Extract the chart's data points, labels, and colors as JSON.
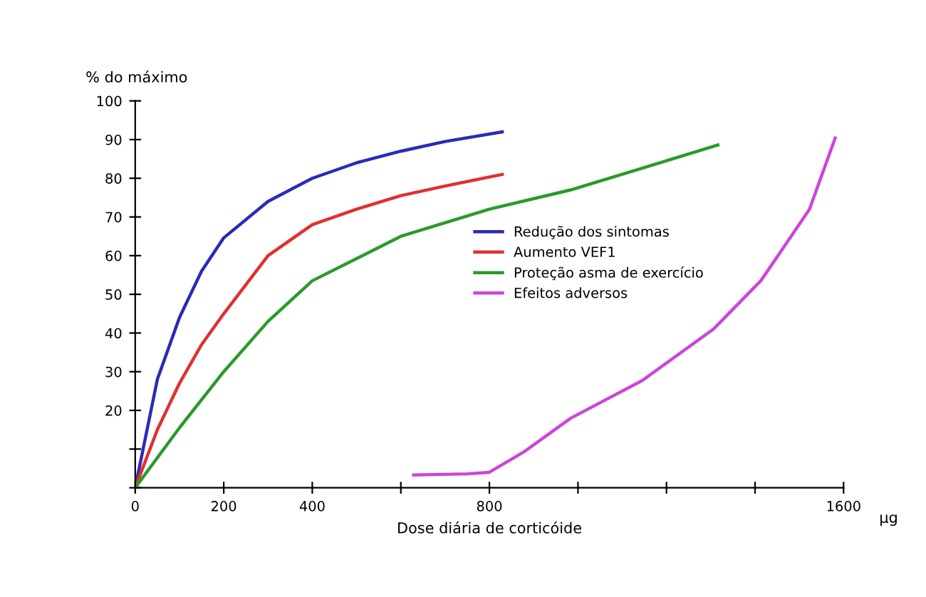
{
  "chart_data": {
    "type": "line",
    "ylabel": "% do máximo",
    "xlabel": "Dose diária de corticóide",
    "annotations": [
      "µg"
    ],
    "xlim": [
      0,
      1600
    ],
    "xticks": [
      0,
      200,
      400,
      {
        "value": 600,
        "label": null
      },
      800,
      {
        "value": 1000,
        "label": null
      },
      {
        "value": 1200,
        "label": null
      },
      {
        "value": 1400,
        "label": null
      },
      1600
    ],
    "ylim": [
      0,
      100
    ],
    "yticks": [
      {
        "value": 0,
        "label": null
      },
      {
        "value": 10,
        "label": null
      },
      20,
      30,
      40,
      50,
      60,
      70,
      80,
      90,
      100
    ],
    "grid": false,
    "legend": "right",
    "marker": "none",
    "line_style": "solid",
    "series": [
      {
        "name": "Redução dos sintomas",
        "color": "#2a2ab8",
        "x": [
          0,
          50,
          100,
          150,
          200,
          300,
          400,
          500,
          600,
          700,
          829
        ],
        "values": [
          0,
          28,
          44,
          56,
          64.6,
          74,
          80,
          84,
          87,
          89.5,
          92
        ]
      },
      {
        "name": "Aumento VEF1",
        "color": "#e03030",
        "x": [
          0,
          50,
          100,
          150,
          200,
          300,
          400,
          500,
          600,
          700,
          829
        ],
        "values": [
          0,
          15,
          27,
          37,
          45,
          60,
          68,
          72,
          75.5,
          78,
          81
        ]
      },
      {
        "name": "Proteção asma de exercício",
        "color": "#2a9a2a",
        "x": [
          0,
          100,
          200,
          300,
          400,
          600,
          800,
          984,
          1145,
          1316
        ],
        "values": [
          0,
          15.5,
          30,
          43,
          53.5,
          65,
          72,
          77,
          82.6,
          88.6
        ]
      },
      {
        "name": "Efeitos adversos",
        "color": "#cc44dd",
        "x": [
          629,
          750,
          800,
          877,
          984,
          1145,
          1306,
          1413,
          1523,
          1581
        ],
        "values": [
          3.3,
          3.6,
          4,
          9.2,
          18,
          27.7,
          41,
          53.5,
          72,
          90.4
        ]
      }
    ]
  }
}
